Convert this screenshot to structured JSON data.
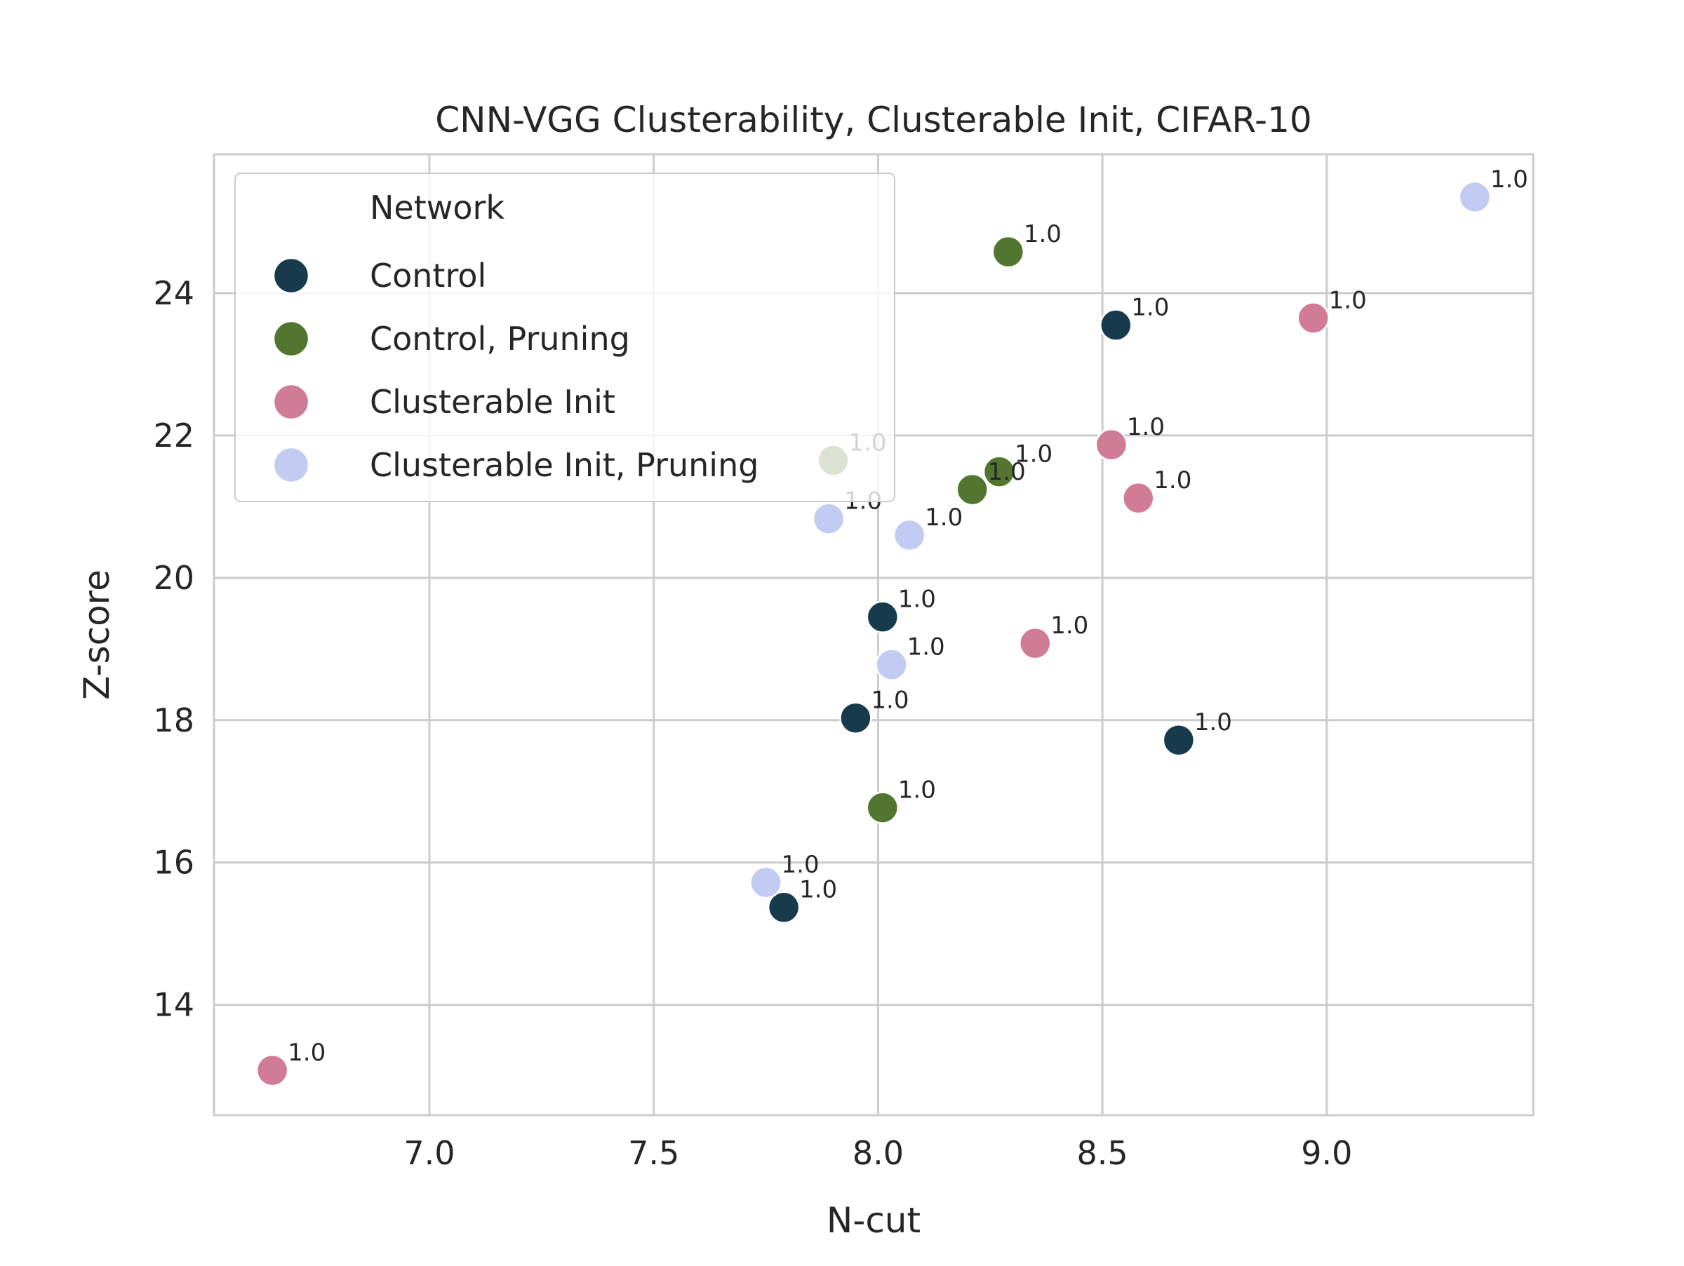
{
  "chart_data": {
    "type": "scatter",
    "title": "CNN-VGG Clusterability, Clusterable Init, CIFAR-10",
    "xlabel": "N-cut",
    "ylabel": "Z-score",
    "xlim": [
      6.52,
      9.46
    ],
    "ylim": [
      12.45,
      25.95
    ],
    "xticks": [
      7.0,
      7.5,
      8.0,
      8.5,
      9.0
    ],
    "xtick_labels": [
      "7.0",
      "7.5",
      "8.0",
      "8.5",
      "9.0"
    ],
    "yticks": [
      14,
      16,
      18,
      20,
      22,
      24
    ],
    "ytick_labels": [
      "14",
      "16",
      "18",
      "20",
      "22",
      "24"
    ],
    "grid": true,
    "legend": {
      "title": "Network",
      "position": "top-left"
    },
    "series": [
      {
        "name": "Control",
        "color": "#173b4d",
        "points": [
          {
            "x": 8.53,
            "y": 23.55,
            "label": "1.0"
          },
          {
            "x": 8.01,
            "y": 19.45,
            "label": "1.0"
          },
          {
            "x": 7.95,
            "y": 18.03,
            "label": "1.0"
          },
          {
            "x": 8.67,
            "y": 17.72,
            "label": "1.0"
          },
          {
            "x": 7.79,
            "y": 15.37,
            "label": "1.0"
          }
        ]
      },
      {
        "name": "Control, Pruning",
        "color": "#52762f",
        "points": [
          {
            "x": 8.29,
            "y": 24.58,
            "label": "1.0"
          },
          {
            "x": 7.9,
            "y": 21.65,
            "label": "1.0"
          },
          {
            "x": 8.27,
            "y": 21.49,
            "label": "1.0"
          },
          {
            "x": 8.21,
            "y": 21.24,
            "label": "1.0"
          },
          {
            "x": 8.01,
            "y": 16.77,
            "label": "1.0"
          }
        ]
      },
      {
        "name": "Clusterable Init",
        "color": "#d07c94",
        "points": [
          {
            "x": 8.97,
            "y": 23.65,
            "label": "1.0"
          },
          {
            "x": 8.52,
            "y": 21.87,
            "label": "1.0"
          },
          {
            "x": 8.58,
            "y": 21.12,
            "label": "1.0"
          },
          {
            "x": 8.35,
            "y": 19.08,
            "label": "1.0"
          },
          {
            "x": 6.65,
            "y": 13.08,
            "label": "1.0"
          }
        ]
      },
      {
        "name": "Clusterable Init, Pruning",
        "color": "#c3cbf2",
        "points": [
          {
            "x": 9.33,
            "y": 25.35,
            "label": "1.0"
          },
          {
            "x": 7.89,
            "y": 20.83,
            "label": "1.0"
          },
          {
            "x": 8.07,
            "y": 20.6,
            "label": "1.0"
          },
          {
            "x": 8.03,
            "y": 18.78,
            "label": "1.0"
          },
          {
            "x": 7.75,
            "y": 15.72,
            "label": "1.0"
          }
        ]
      }
    ]
  }
}
